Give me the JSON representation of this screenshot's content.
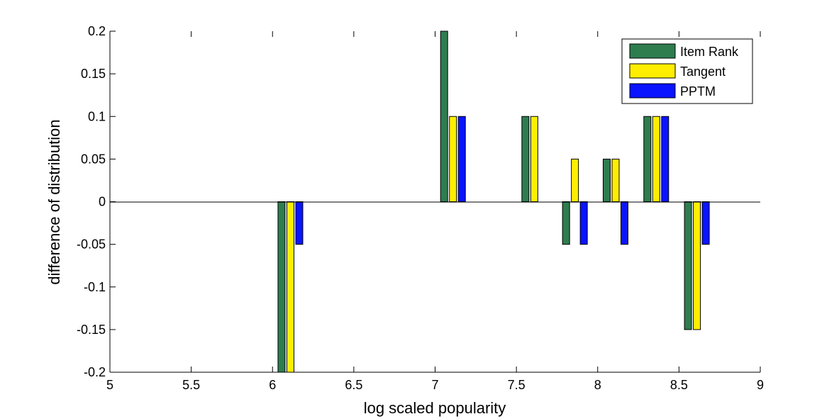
{
  "chart_data": {
    "type": "bar",
    "title": "",
    "xlabel": "log scaled popularity",
    "ylabel": "difference of distribution",
    "xlim": [
      5,
      9
    ],
    "ylim": [
      -0.2,
      0.2
    ],
    "xticks": [
      "5",
      "5.5",
      "6",
      "6.5",
      "7",
      "7.5",
      "8",
      "8.5",
      "9"
    ],
    "yticks": [
      "-0.2",
      "-0.15",
      "-0.1",
      "-0.05",
      "0",
      "0.05",
      "0.1",
      "0.15",
      "0.2"
    ],
    "grid": false,
    "legend_position": "top-right",
    "x": [
      6.11,
      7.11,
      7.61,
      7.86,
      8.11,
      8.36,
      8.61
    ],
    "series": [
      {
        "name": "Item Rank",
        "color": "#2e7d4f",
        "values": [
          -0.2,
          0.2,
          0.1,
          -0.05,
          0.05,
          0.1,
          -0.15
        ]
      },
      {
        "name": "Tangent",
        "color": "#ffee00",
        "values": [
          -0.2,
          0.1,
          0.1,
          0.05,
          0.05,
          0.1,
          -0.15
        ]
      },
      {
        "name": "PPTM",
        "color": "#0a14ff",
        "values": [
          -0.05,
          0.1,
          0,
          -0.05,
          -0.05,
          0.1,
          -0.05
        ]
      }
    ]
  }
}
